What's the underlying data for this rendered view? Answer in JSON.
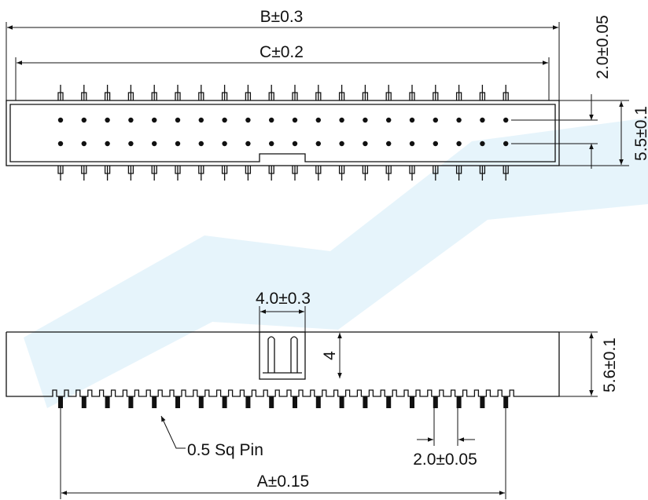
{
  "top_view": {
    "dim_b": "B±0.3",
    "dim_c": "C±0.2",
    "dim_pitch": "2.0±0.05",
    "dim_width": "5.5±0.1"
  },
  "side_view": {
    "dim_latch_width": "4.0±0.3",
    "dim_latch_height": "4",
    "dim_height": "5.6±0.1",
    "pin_note": "0.5 Sq Pin",
    "dim_pitch": "2.0±0.05",
    "dim_a": "A±0.15"
  }
}
